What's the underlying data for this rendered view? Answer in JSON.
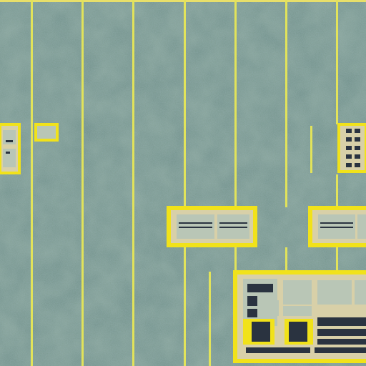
{
  "image": {
    "subject": "micrograph",
    "palette": {
      "substrate": "#6e8e86",
      "substrate_light": "#86a79b",
      "substrate_dark": "#52706a",
      "line": "#e2e35a",
      "pad_frame": "#f1e21a",
      "pad_inner": "#d8d0a8",
      "pad_fill": "#b9c6b6",
      "dark_block": "#2a3340",
      "frame_top": "#e8df6a"
    }
  }
}
